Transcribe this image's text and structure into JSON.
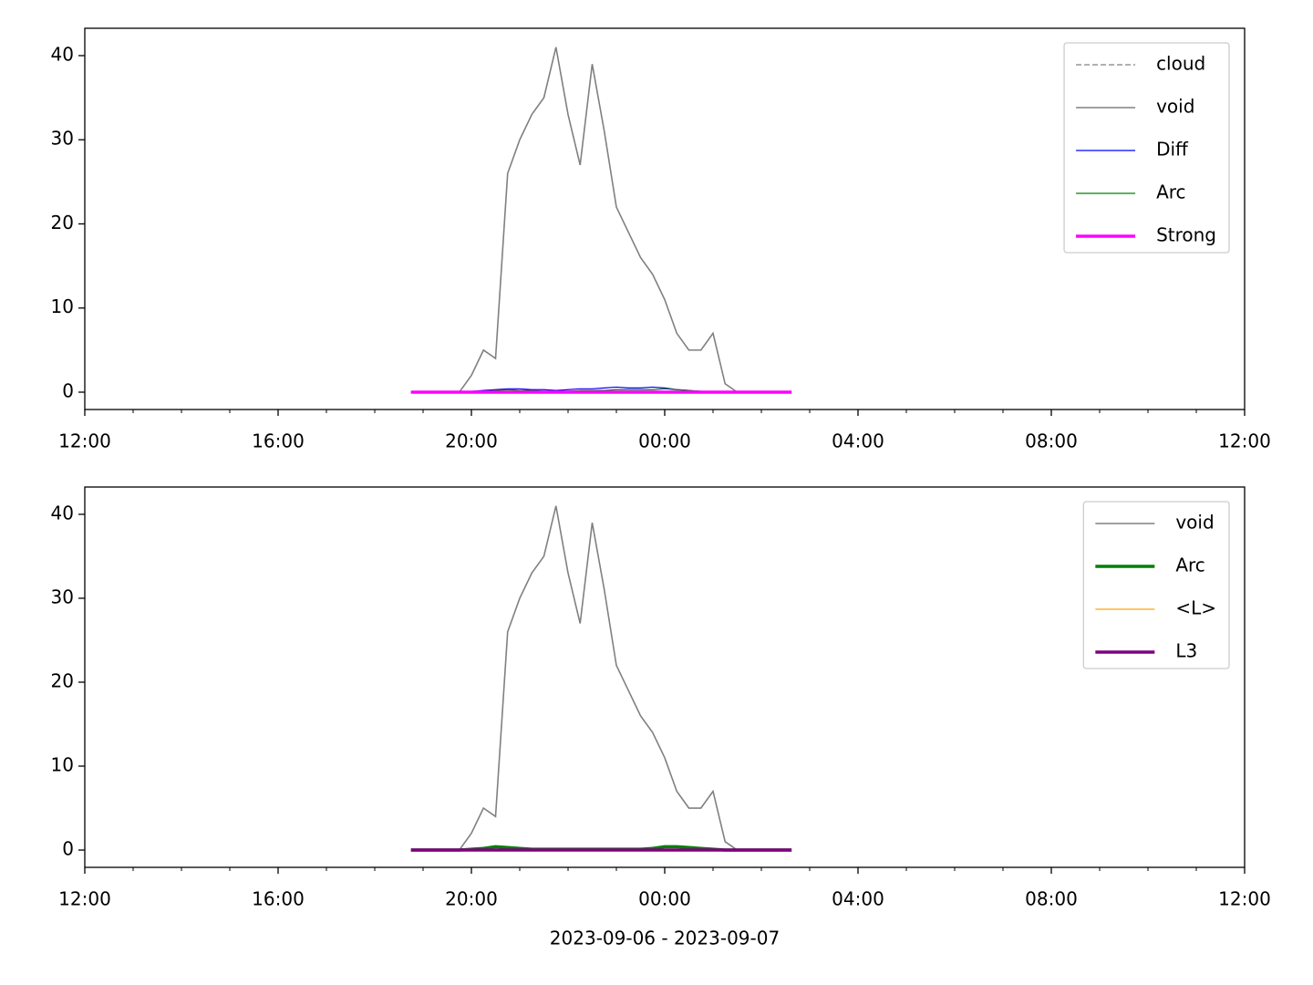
{
  "chart_data": [
    {
      "type": "line",
      "x": [
        6.75,
        7.0,
        7.25,
        7.5,
        7.75,
        8.0,
        8.25,
        8.5,
        8.75,
        9.0,
        9.25,
        9.5,
        9.75,
        10.0,
        10.25,
        10.5,
        10.75,
        11.0,
        11.25,
        11.5,
        11.75,
        12.0,
        12.25,
        12.5,
        12.75,
        13.0,
        13.25,
        13.5,
        13.75,
        14.0,
        14.25,
        14.5,
        14.625
      ],
      "series": [
        {
          "name": "cloud",
          "color": "#808080",
          "linewidth": 1.2,
          "dash": true,
          "values": [
            0,
            0,
            0,
            0,
            0,
            0,
            0,
            0,
            0,
            0,
            0,
            0,
            0,
            0,
            0,
            0,
            0,
            0,
            0,
            0,
            0,
            0,
            0,
            0,
            0,
            0,
            0,
            0,
            0,
            0,
            0,
            0,
            0
          ]
        },
        {
          "name": "void",
          "color": "#808080",
          "linewidth": 1.6,
          "values": [
            null,
            null,
            null,
            null,
            0,
            2,
            5,
            4,
            26,
            30,
            33,
            35,
            41,
            33,
            27,
            39,
            31,
            22,
            19,
            16,
            14,
            11,
            7,
            5,
            5,
            7,
            1,
            0,
            null,
            null,
            null,
            null,
            null
          ]
        },
        {
          "name": "Diff",
          "color": "#0000ff",
          "linewidth": 1.2,
          "values": [
            0,
            0,
            0,
            0,
            0,
            0.1,
            0.2,
            0.3,
            0.4,
            0.4,
            0.3,
            0.3,
            0.2,
            0.3,
            0.4,
            0.4,
            0.5,
            0.6,
            0.5,
            0.5,
            0.6,
            0.5,
            0.3,
            0.2,
            0.1,
            0.1,
            0.1,
            0,
            0,
            0,
            0,
            0,
            0
          ]
        },
        {
          "name": "Arc",
          "color": "#008000",
          "linewidth": 1.2,
          "values": [
            0,
            0,
            0,
            0,
            0,
            0.1,
            0.1,
            0.2,
            0.3,
            0.2,
            0.2,
            0.1,
            0.1,
            0.1,
            0.2,
            0.2,
            0.2,
            0.3,
            0.3,
            0.3,
            0.3,
            0.4,
            0.3,
            0.2,
            0.1,
            0.1,
            0,
            0,
            0,
            0,
            0,
            0,
            0
          ]
        },
        {
          "name": "Strong",
          "color": "#ff00ff",
          "linewidth": 3.5,
          "values": [
            0,
            0,
            0,
            0,
            0,
            0,
            0,
            0,
            0,
            0,
            0,
            0,
            0,
            0,
            0,
            0,
            0,
            0,
            0,
            0,
            0,
            0,
            0,
            0,
            0,
            0,
            0,
            0,
            0,
            0,
            0,
            0,
            0
          ]
        }
      ],
      "xlim": [
        0,
        24
      ],
      "ylim": [
        -2.06,
        43.25
      ],
      "xticks": [
        {
          "value": 0,
          "label": "12:00"
        },
        {
          "value": 4,
          "label": "16:00"
        },
        {
          "value": 8,
          "label": "20:00"
        },
        {
          "value": 12,
          "label": "00:00"
        },
        {
          "value": 16,
          "label": "04:00"
        },
        {
          "value": 20,
          "label": "08:00"
        },
        {
          "value": 24,
          "label": "12:00"
        }
      ],
      "xminorticks": [
        1,
        2,
        3,
        5,
        6,
        7,
        9,
        10,
        11,
        13,
        14,
        15,
        17,
        18,
        19,
        21,
        22,
        23
      ],
      "yticks": [
        0,
        10,
        20,
        30,
        40
      ],
      "legend": "upper right"
    },
    {
      "type": "line",
      "x": [
        6.75,
        7.0,
        7.25,
        7.5,
        7.75,
        8.0,
        8.25,
        8.5,
        8.75,
        9.0,
        9.25,
        9.5,
        9.75,
        10.0,
        10.25,
        10.5,
        10.75,
        11.0,
        11.25,
        11.5,
        11.75,
        12.0,
        12.25,
        12.5,
        12.75,
        13.0,
        13.25,
        13.5,
        13.75,
        14.0,
        14.25,
        14.5,
        14.625
      ],
      "series": [
        {
          "name": "void",
          "color": "#808080",
          "linewidth": 1.6,
          "values": [
            null,
            null,
            null,
            null,
            0,
            2,
            5,
            4,
            26,
            30,
            33,
            35,
            41,
            33,
            27,
            39,
            31,
            22,
            19,
            16,
            14,
            11,
            7,
            5,
            5,
            7,
            1,
            0,
            null,
            null,
            null,
            null,
            null
          ]
        },
        {
          "name": "Arc",
          "color": "#008000",
          "linewidth": 3.5,
          "values": [
            0,
            0,
            0,
            0,
            0,
            0.1,
            0.2,
            0.4,
            0.3,
            0.2,
            0.1,
            0.1,
            0.1,
            0.1,
            0.1,
            0.1,
            0.1,
            0.1,
            0.1,
            0.1,
            0.2,
            0.4,
            0.4,
            0.3,
            0.2,
            0.1,
            0,
            0,
            0,
            0,
            0,
            0,
            0
          ]
        },
        {
          "name": "<L>",
          "color": "#ffa500",
          "linewidth": 1.2,
          "values": [
            0,
            0,
            0,
            0,
            0,
            0.05,
            0.1,
            0.1,
            0.1,
            0.1,
            0.05,
            0.05,
            0.05,
            0.05,
            0.05,
            0.05,
            0.05,
            0.05,
            0.05,
            0.05,
            0.1,
            0.1,
            0.1,
            0.1,
            0.05,
            0.05,
            0,
            0,
            0,
            0,
            0,
            0,
            0
          ]
        },
        {
          "name": "L3",
          "color": "#800080",
          "linewidth": 3.5,
          "values": [
            0,
            0,
            0,
            0,
            0,
            0,
            0,
            0,
            0,
            0,
            0,
            0,
            0,
            0,
            0,
            0,
            0,
            0,
            0,
            0,
            0,
            0,
            0,
            0,
            0,
            0,
            0,
            0,
            0,
            0,
            0,
            0,
            0
          ]
        }
      ],
      "xlim": [
        0,
        24
      ],
      "ylim": [
        -2.06,
        43.25
      ],
      "xticks": [
        {
          "value": 0,
          "label": "12:00"
        },
        {
          "value": 4,
          "label": "16:00"
        },
        {
          "value": 8,
          "label": "20:00"
        },
        {
          "value": 12,
          "label": "00:00"
        },
        {
          "value": 16,
          "label": "04:00"
        },
        {
          "value": 20,
          "label": "08:00"
        },
        {
          "value": 24,
          "label": "12:00"
        }
      ],
      "xminorticks": [
        1,
        2,
        3,
        5,
        6,
        7,
        9,
        10,
        11,
        13,
        14,
        15,
        17,
        18,
        19,
        21,
        22,
        23
      ],
      "yticks": [
        0,
        10,
        20,
        30,
        40
      ],
      "xlabel": "2023-09-06 - 2023-09-07",
      "legend": "upper right"
    }
  ]
}
